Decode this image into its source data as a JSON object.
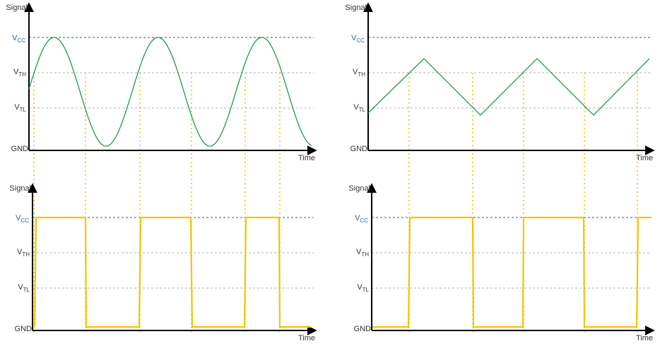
{
  "colors": {
    "axis": "#000000",
    "vcc_line": "#1f5fa8",
    "threshold_line": "#b0b0b0",
    "signal": "#1a9c4a",
    "output": "#f5c400",
    "guide": "#f5c400"
  },
  "labels": {
    "y_axis": "Signal",
    "x_axis": "Time",
    "vcc_main": "V",
    "vcc_sub": "CC",
    "vth_main": "V",
    "vth_sub": "TH",
    "vtl_main": "V",
    "vtl_sub": "TL",
    "gnd": "GND"
  },
  "panels": [
    {
      "id": "sine-input",
      "kind": "sine"
    },
    {
      "id": "triangle-input",
      "kind": "triangle"
    },
    {
      "id": "sine-output",
      "kind": "square"
    },
    {
      "id": "triangle-output",
      "kind": "square"
    }
  ]
}
